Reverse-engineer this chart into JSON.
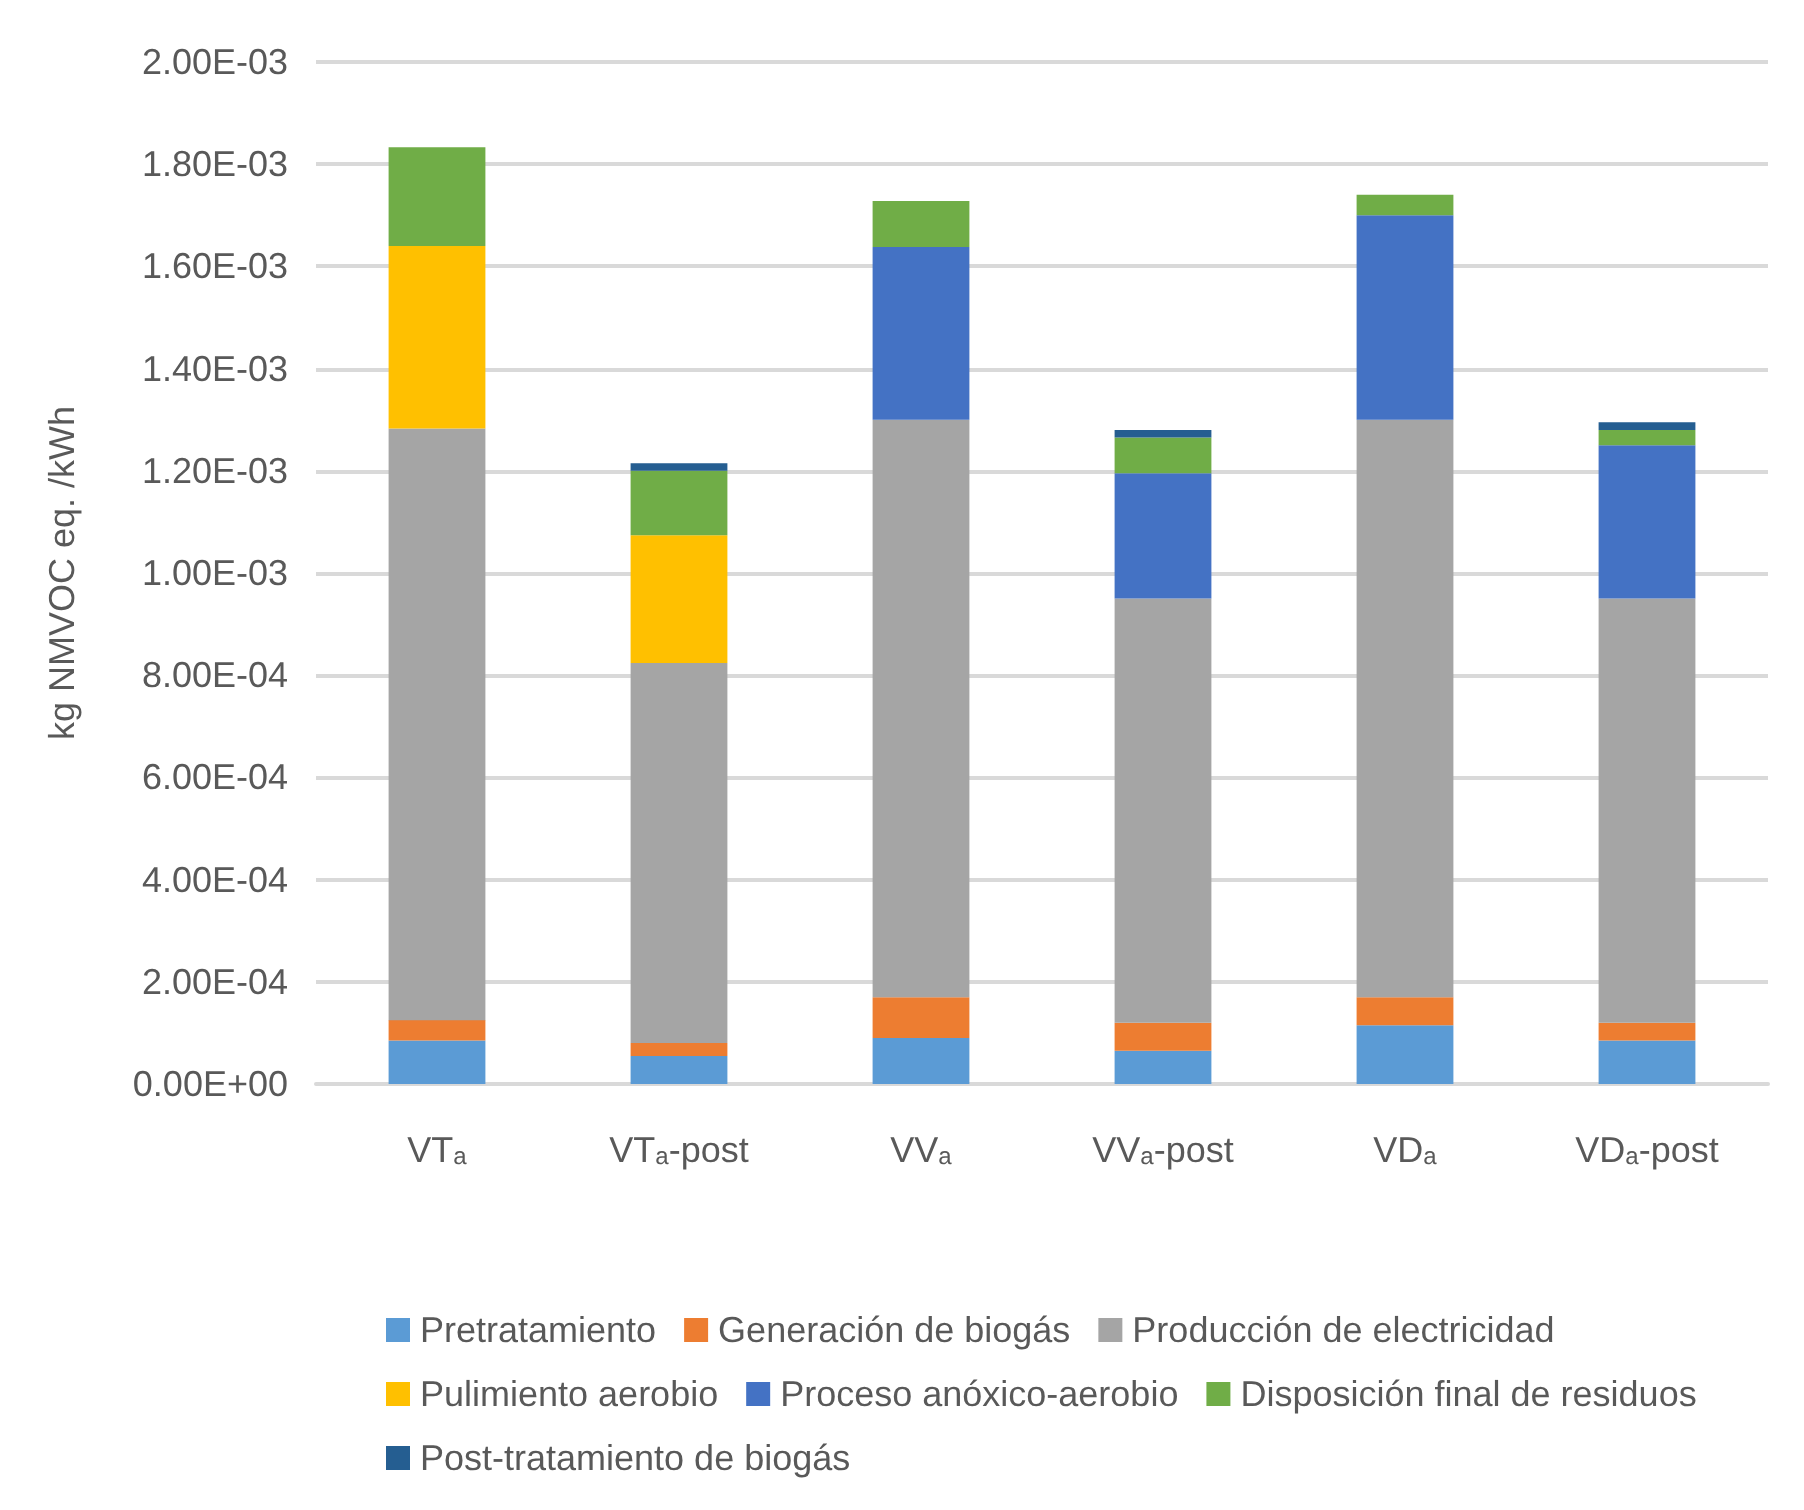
{
  "chart_data": {
    "type": "bar",
    "stacked": true,
    "ylabel": "kg NMVOC eq. /kWh",
    "categories": [
      "VT$_{a}$",
      "VT$_{a}$-post",
      "VV$_{a}$",
      "VV$_{a}$-post",
      "VD$_{a}$",
      "VD$_{a}$-post"
    ],
    "series": [
      {
        "name": "Pretratamiento",
        "color": "#5b9bd5",
        "values": [
          8.5e-05,
          5.5e-05,
          9e-05,
          6.5e-05,
          0.000115,
          8.5e-05
        ]
      },
      {
        "name": "Generación de biogás",
        "color": "#ed7d31",
        "values": [
          4e-05,
          2.5e-05,
          8e-05,
          5.5e-05,
          5.5e-05,
          3.5e-05
        ]
      },
      {
        "name": "Producción de electricidad",
        "color": "#a5a5a5",
        "values": [
          0.001158,
          0.000744,
          0.00113,
          0.00083,
          0.00113,
          0.00083
        ]
      },
      {
        "name": "Pulimiento aerobio",
        "color": "#ffc000",
        "values": [
          0.000357,
          0.00025,
          null,
          null,
          null,
          null
        ]
      },
      {
        "name": "Proceso anóxico-aerobio",
        "color": "#4472c4",
        "values": [
          null,
          null,
          0.000338,
          0.000245,
          0.0004,
          0.0003
        ]
      },
      {
        "name": "Disposición final de residuos",
        "color": "#70ad47",
        "values": [
          0.000193,
          0.000126,
          9e-05,
          7e-05,
          4e-05,
          3e-05
        ]
      },
      {
        "name": "Post-tratamiento de biogás",
        "color": "#255e91",
        "values": [
          null,
          1.5e-05,
          null,
          1.5e-05,
          null,
          1.5e-05
        ]
      }
    ],
    "ylim": [
      0,
      0.002
    ],
    "yticks": [
      {
        "value": 0,
        "label": "0.00E+00"
      },
      {
        "value": 0.0002,
        "label": "2.00E-04"
      },
      {
        "value": 0.0004,
        "label": "4.00E-04"
      },
      {
        "value": 0.0006,
        "label": "6.00E-04"
      },
      {
        "value": 0.0008,
        "label": "8.00E-04"
      },
      {
        "value": 0.001,
        "label": "1.00E-03"
      },
      {
        "value": 0.0012,
        "label": "1.20E-03"
      },
      {
        "value": 0.0014,
        "label": "1.40E-03"
      },
      {
        "value": 0.0016,
        "label": "1.60E-03"
      },
      {
        "value": 0.0018,
        "label": "1.80E-03"
      },
      {
        "value": 0.002,
        "label": "2.00E-03"
      }
    ],
    "grid": "y",
    "legend": "bottom"
  }
}
